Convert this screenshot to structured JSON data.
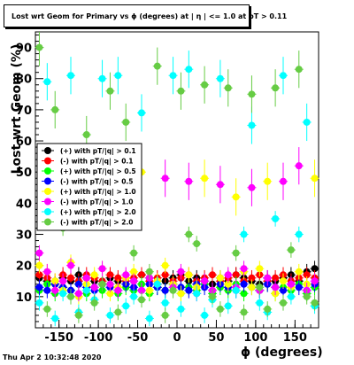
{
  "chart_data": {
    "type": "scatter",
    "title": "Lost wrt Geom for Primary vs ϕ (degrees) at | η | <= 1.0 at pT > 0.11",
    "xlabel": "ϕ (degrees)",
    "ylabel": "Lost wrt Geom (%)",
    "xlim": [
      -180,
      180
    ],
    "ylim": [
      0,
      95
    ],
    "xticks": [
      -150,
      -100,
      -50,
      0,
      50,
      100,
      150
    ],
    "yticks": [
      10,
      20,
      30,
      40,
      50,
      60,
      70,
      80,
      90
    ],
    "grid": false,
    "legend_position": "left",
    "timestamp": "Thu Apr  2 10:32:48 2020",
    "series": [
      {
        "name": "(+) with pT/|q| > 0.1",
        "color": "#000000",
        "marker": "circle",
        "x": [
          -175,
          -165,
          -155,
          -145,
          -135,
          -125,
          -115,
          -105,
          -95,
          -85,
          -75,
          -65,
          -55,
          -45,
          -35,
          -25,
          -15,
          -5,
          5,
          15,
          25,
          35,
          45,
          55,
          65,
          75,
          85,
          95,
          105,
          115,
          125,
          135,
          145,
          155,
          165,
          175
        ],
        "y": [
          16,
          15,
          14,
          16,
          15,
          17,
          16,
          15,
          14,
          16,
          15,
          16,
          15,
          17,
          16,
          14,
          15,
          16,
          17,
          15,
          16,
          15,
          14,
          16,
          15,
          17,
          16,
          15,
          14,
          16,
          15,
          16,
          17,
          15,
          18,
          19
        ]
      },
      {
        "name": "(-) with pT/|q| > 0.1",
        "color": "#ff0000",
        "marker": "circle",
        "x": [
          -175,
          -165,
          -155,
          -145,
          -135,
          -125,
          -115,
          -105,
          -95,
          -85,
          -75,
          -65,
          -55,
          -45,
          -35,
          -25,
          -15,
          -5,
          5,
          15,
          25,
          35,
          45,
          55,
          65,
          75,
          85,
          95,
          105,
          115,
          125,
          135,
          145,
          155,
          165,
          175
        ],
        "y": [
          17,
          16,
          15,
          17,
          16,
          15,
          17,
          16,
          15,
          17,
          16,
          15,
          16,
          17,
          15,
          16,
          17,
          15,
          16,
          17,
          15,
          16,
          17,
          15,
          16,
          17,
          15,
          16,
          17,
          15,
          16,
          17,
          15,
          16,
          17,
          16
        ]
      },
      {
        "name": "(+) with pT/|q| > 0.5",
        "color": "#00ff00",
        "marker": "circle",
        "x": [
          -175,
          -165,
          -155,
          -145,
          -135,
          -125,
          -115,
          -105,
          -95,
          -85,
          -75,
          -65,
          -55,
          -45,
          -35,
          -25,
          -15,
          -5,
          5,
          15,
          25,
          35,
          45,
          55,
          65,
          75,
          85,
          95,
          105,
          115,
          125,
          135,
          145,
          155,
          165,
          175
        ],
        "y": [
          12,
          14,
          11,
          13,
          12,
          14,
          11,
          13,
          12,
          14,
          11,
          13,
          12,
          14,
          11,
          13,
          12,
          14,
          11,
          13,
          12,
          14,
          11,
          13,
          12,
          14,
          11,
          13,
          12,
          14,
          11,
          13,
          12,
          14,
          11,
          13
        ]
      },
      {
        "name": "(-) with pT/|q| > 0.5",
        "color": "#0000ff",
        "marker": "circle",
        "x": [
          -175,
          -165,
          -155,
          -145,
          -135,
          -125,
          -115,
          -105,
          -95,
          -85,
          -75,
          -65,
          -55,
          -45,
          -35,
          -25,
          -15,
          -5,
          5,
          15,
          25,
          35,
          45,
          55,
          65,
          75,
          85,
          95,
          105,
          115,
          125,
          135,
          145,
          155,
          165,
          175
        ],
        "y": [
          13,
          12,
          14,
          13,
          12,
          14,
          13,
          12,
          14,
          13,
          12,
          14,
          13,
          12,
          14,
          13,
          12,
          14,
          13,
          12,
          14,
          13,
          12,
          14,
          13,
          12,
          14,
          13,
          12,
          14,
          13,
          12,
          14,
          13,
          12,
          14
        ]
      },
      {
        "name": "(+) with pT/|q| > 1.0",
        "color": "#ffff00",
        "marker": "circle",
        "x": [
          -175,
          -165,
          -155,
          -145,
          -135,
          -125,
          -115,
          -105,
          -95,
          -85,
          -75,
          -65,
          -55,
          -45,
          -35,
          -25,
          -15,
          -5,
          5,
          15,
          25,
          35,
          45,
          55,
          65,
          75,
          85,
          95,
          105,
          115,
          125,
          135,
          145,
          155,
          165,
          175
        ],
        "y": [
          20,
          18,
          15,
          12,
          21,
          10,
          14,
          17,
          19,
          11,
          13,
          16,
          18,
          50,
          12,
          15,
          20,
          14,
          11,
          17,
          13,
          48,
          12,
          16,
          14,
          42,
          18,
          13,
          19,
          47,
          11,
          15,
          13,
          18,
          14,
          48
        ]
      },
      {
        "name": "(-) with pT/|q| > 1.0",
        "color": "#ff00ff",
        "marker": "circle",
        "x": [
          -175,
          -165,
          -155,
          -145,
          -135,
          -125,
          -115,
          -105,
          -95,
          -85,
          -75,
          -65,
          -55,
          -45,
          -35,
          -25,
          -15,
          -5,
          5,
          15,
          25,
          35,
          45,
          55,
          65,
          75,
          85,
          95,
          105,
          115,
          125,
          135,
          145,
          155,
          165,
          175
        ],
        "y": [
          24,
          18,
          12,
          15,
          20,
          11,
          16,
          13,
          19,
          14,
          12,
          17,
          15,
          12,
          16,
          14,
          48,
          13,
          18,
          47,
          11,
          15,
          12,
          46,
          17,
          13,
          19,
          45,
          12,
          16,
          13,
          47,
          14,
          52,
          12,
          15
        ]
      },
      {
        "name": "(+) with pT/|q| > 2.0",
        "color": "#00ffff",
        "marker": "circle",
        "x": [
          -175,
          -165,
          -155,
          -145,
          -135,
          -125,
          -115,
          -105,
          -95,
          -85,
          -75,
          -65,
          -55,
          -45,
          -35,
          -25,
          -15,
          -5,
          5,
          15,
          25,
          35,
          45,
          55,
          65,
          75,
          85,
          95,
          105,
          115,
          125,
          135,
          145,
          155,
          165,
          175
        ],
        "y": [
          8,
          79,
          3,
          11,
          81,
          5,
          12,
          9,
          80,
          4,
          81,
          7,
          10,
          69,
          3,
          14,
          8,
          81,
          6,
          83,
          11,
          4,
          9,
          80,
          7,
          12,
          30,
          65,
          8,
          5,
          35,
          81,
          10,
          30,
          66,
          7
        ]
      },
      {
        "name": "(-) with pT/|q| > 2.0",
        "color": "#66cc44",
        "marker": "circle",
        "x": [
          -175,
          -165,
          -155,
          -145,
          -135,
          -125,
          -115,
          -105,
          -95,
          -85,
          -75,
          -65,
          -55,
          -45,
          -35,
          -25,
          -15,
          -5,
          5,
          15,
          25,
          35,
          45,
          55,
          65,
          75,
          85,
          95,
          105,
          115,
          125,
          135,
          145,
          155,
          165,
          175
        ],
        "y": [
          90,
          6,
          70,
          32,
          10,
          4,
          62,
          8,
          14,
          76,
          5,
          66,
          24,
          9,
          18,
          84,
          4,
          12,
          76,
          30,
          27,
          78,
          10,
          6,
          77,
          24,
          5,
          75,
          13,
          6,
          77,
          8,
          25,
          83,
          10,
          8
        ]
      }
    ]
  }
}
